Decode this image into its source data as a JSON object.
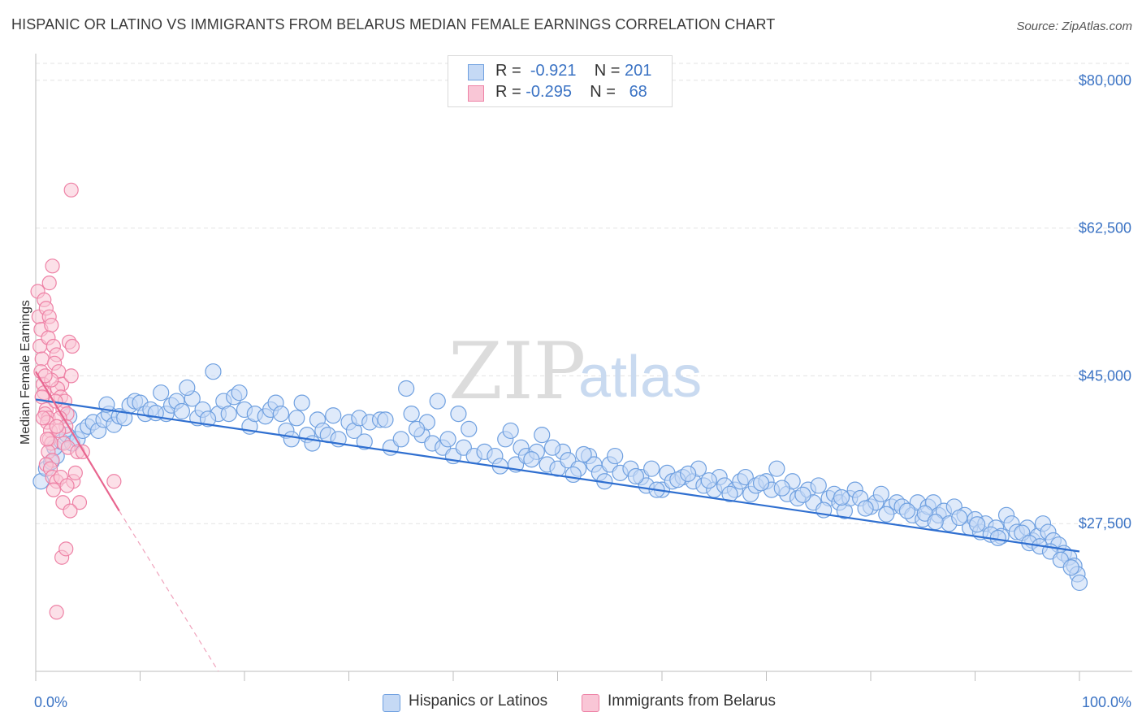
{
  "title": "HISPANIC OR LATINO VS IMMIGRANTS FROM BELARUS MEDIAN FEMALE EARNINGS CORRELATION CHART",
  "source": "Source: ZipAtlas.com",
  "watermark": {
    "zip": "ZIP",
    "atlas": "atlas"
  },
  "legend_top": [
    {
      "r_label": "R =",
      "r_value": "-0.921",
      "n_label": "N =",
      "n_value": "201",
      "color": "#6fa0e0",
      "fill": "#c5d9f5"
    },
    {
      "r_label": "R =",
      "r_value": "-0.295",
      "n_label": "N =",
      "n_value": "68",
      "color": "#ee82a6",
      "fill": "#f9c6d6"
    }
  ],
  "chart_data": {
    "type": "scatter",
    "title": "HISPANIC OR LATINO VS IMMIGRANTS FROM BELARUS MEDIAN FEMALE EARNINGS CORRELATION CHART",
    "xlabel": "",
    "ylabel": "Median Female Earnings",
    "xlim": [
      0,
      100
    ],
    "ylim": [
      10000,
      82000
    ],
    "x_tick_labels": [
      "0.0%",
      "100.0%"
    ],
    "y_ticks": [
      27500,
      45000,
      62500,
      80000
    ],
    "y_tick_labels": [
      "$27,500",
      "$45,000",
      "$62,500",
      "$80,000"
    ],
    "series": [
      {
        "name": "Hispanics or Latinos",
        "color": "#6fa0e0",
        "fill": "#c5d9f5",
        "trend": {
          "x": [
            0,
            100
          ],
          "y": [
            42200,
            24200
          ]
        },
        "points": [
          [
            0.5,
            32500
          ],
          [
            1.0,
            34000
          ],
          [
            1.5,
            34800
          ],
          [
            2.0,
            35500
          ],
          [
            1.8,
            36500
          ],
          [
            2.5,
            37200
          ],
          [
            3.0,
            38000
          ],
          [
            3.5,
            37000
          ],
          [
            4.0,
            37500
          ],
          [
            4.5,
            38500
          ],
          [
            5.0,
            39000
          ],
          [
            5.5,
            39500
          ],
          [
            6.0,
            38500
          ],
          [
            6.5,
            39800
          ],
          [
            7.0,
            40500
          ],
          [
            7.5,
            39200
          ],
          [
            8.0,
            40200
          ],
          [
            8.5,
            40000
          ],
          [
            9.0,
            41500
          ],
          [
            9.5,
            42000
          ],
          [
            10.0,
            41800
          ],
          [
            10.5,
            40500
          ],
          [
            11.0,
            41000
          ],
          [
            12.0,
            43000
          ],
          [
            12.5,
            40500
          ],
          [
            13.0,
            41500
          ],
          [
            13.5,
            42000
          ],
          [
            14.0,
            40800
          ],
          [
            15.0,
            42300
          ],
          [
            15.5,
            40000
          ],
          [
            16.0,
            41000
          ],
          [
            17.0,
            45500
          ],
          [
            17.5,
            40500
          ],
          [
            18.0,
            42000
          ],
          [
            18.5,
            40500
          ],
          [
            19.0,
            42500
          ],
          [
            20.0,
            41000
          ],
          [
            20.5,
            39000
          ],
          [
            21.0,
            40500
          ],
          [
            22.0,
            40200
          ],
          [
            22.5,
            41000
          ],
          [
            23.0,
            41800
          ],
          [
            24.0,
            38500
          ],
          [
            24.5,
            37500
          ],
          [
            25.0,
            40000
          ],
          [
            26.0,
            38000
          ],
          [
            26.5,
            37000
          ],
          [
            27.0,
            39800
          ],
          [
            27.5,
            38500
          ],
          [
            28.0,
            38000
          ],
          [
            29.0,
            37500
          ],
          [
            30.0,
            39500
          ],
          [
            30.5,
            38500
          ],
          [
            31.0,
            40000
          ],
          [
            32.0,
            39500
          ],
          [
            33.0,
            39800
          ],
          [
            34.0,
            36500
          ],
          [
            35.0,
            37500
          ],
          [
            35.5,
            43500
          ],
          [
            36.0,
            40500
          ],
          [
            37.0,
            38000
          ],
          [
            37.5,
            39500
          ],
          [
            38.0,
            37000
          ],
          [
            38.5,
            42000
          ],
          [
            39.0,
            36500
          ],
          [
            39.5,
            37500
          ],
          [
            40.0,
            35500
          ],
          [
            40.5,
            40500
          ],
          [
            41.0,
            36500
          ],
          [
            42.0,
            35500
          ],
          [
            43.0,
            36000
          ],
          [
            44.0,
            35500
          ],
          [
            45.0,
            37500
          ],
          [
            45.5,
            38500
          ],
          [
            46.0,
            34500
          ],
          [
            46.5,
            36500
          ],
          [
            47.0,
            35500
          ],
          [
            48.0,
            36000
          ],
          [
            48.5,
            38000
          ],
          [
            49.0,
            34500
          ],
          [
            50.0,
            34000
          ],
          [
            50.5,
            36000
          ],
          [
            51.0,
            35000
          ],
          [
            52.0,
            34000
          ],
          [
            53.0,
            35500
          ],
          [
            53.5,
            34500
          ],
          [
            54.0,
            33500
          ],
          [
            55.0,
            34500
          ],
          [
            55.5,
            35500
          ],
          [
            56.0,
            33500
          ],
          [
            57.0,
            34000
          ],
          [
            58.0,
            33000
          ],
          [
            58.5,
            32000
          ],
          [
            59.0,
            34000
          ],
          [
            60.0,
            31500
          ],
          [
            60.5,
            33500
          ],
          [
            61.0,
            32500
          ],
          [
            62.0,
            33000
          ],
          [
            63.0,
            32500
          ],
          [
            63.5,
            34000
          ],
          [
            64.0,
            32000
          ],
          [
            65.0,
            31500
          ],
          [
            65.5,
            33000
          ],
          [
            66.0,
            32000
          ],
          [
            67.0,
            31500
          ],
          [
            67.5,
            32500
          ],
          [
            68.0,
            33000
          ],
          [
            68.5,
            31000
          ],
          [
            69.0,
            32000
          ],
          [
            70.0,
            32500
          ],
          [
            70.5,
            31500
          ],
          [
            71.0,
            34000
          ],
          [
            72.0,
            31000
          ],
          [
            72.5,
            32500
          ],
          [
            73.0,
            30500
          ],
          [
            74.0,
            31500
          ],
          [
            74.5,
            30000
          ],
          [
            75.0,
            32000
          ],
          [
            76.0,
            30500
          ],
          [
            76.5,
            31000
          ],
          [
            77.0,
            30000
          ],
          [
            77.5,
            29000
          ],
          [
            78.0,
            30500
          ],
          [
            78.5,
            31500
          ],
          [
            79.0,
            30500
          ],
          [
            80.0,
            29500
          ],
          [
            80.5,
            30000
          ],
          [
            81.0,
            31000
          ],
          [
            82.0,
            29500
          ],
          [
            82.5,
            30000
          ],
          [
            83.0,
            29500
          ],
          [
            84.0,
            28500
          ],
          [
            84.5,
            30000
          ],
          [
            85.0,
            28000
          ],
          [
            85.5,
            29500
          ],
          [
            86.0,
            30000
          ],
          [
            86.5,
            28500
          ],
          [
            87.0,
            29000
          ],
          [
            87.5,
            27500
          ],
          [
            88.0,
            29500
          ],
          [
            89.0,
            28500
          ],
          [
            89.5,
            27000
          ],
          [
            90.0,
            28000
          ],
          [
            90.5,
            26500
          ],
          [
            91.0,
            27500
          ],
          [
            92.0,
            27000
          ],
          [
            92.5,
            26000
          ],
          [
            93.0,
            28500
          ],
          [
            93.5,
            27500
          ],
          [
            94.0,
            26500
          ],
          [
            95.0,
            27000
          ],
          [
            95.5,
            25500
          ],
          [
            96.0,
            26000
          ],
          [
            96.5,
            27500
          ],
          [
            97.0,
            26500
          ],
          [
            97.5,
            25500
          ],
          [
            98.0,
            25000
          ],
          [
            98.5,
            24000
          ],
          [
            99.0,
            23500
          ],
          [
            99.5,
            22500
          ],
          [
            99.8,
            21500
          ],
          [
            100.0,
            20500
          ],
          [
            3.2,
            40200
          ],
          [
            6.8,
            41600
          ],
          [
            11.5,
            40600
          ],
          [
            14.5,
            43600
          ],
          [
            16.5,
            39900
          ],
          [
            19.5,
            43000
          ],
          [
            23.5,
            40500
          ],
          [
            25.5,
            41800
          ],
          [
            28.5,
            40300
          ],
          [
            31.5,
            37200
          ],
          [
            33.5,
            39800
          ],
          [
            36.5,
            38700
          ],
          [
            41.5,
            38700
          ],
          [
            44.5,
            34300
          ],
          [
            47.5,
            35100
          ],
          [
            49.5,
            36500
          ],
          [
            51.5,
            33300
          ],
          [
            52.5,
            35700
          ],
          [
            54.5,
            32500
          ],
          [
            57.5,
            33100
          ],
          [
            59.5,
            31500
          ],
          [
            61.5,
            32700
          ],
          [
            62.5,
            33400
          ],
          [
            64.5,
            32600
          ],
          [
            66.5,
            31000
          ],
          [
            69.5,
            32300
          ],
          [
            71.5,
            31700
          ],
          [
            73.5,
            30900
          ],
          [
            75.5,
            29100
          ],
          [
            77.2,
            30600
          ],
          [
            79.5,
            29300
          ],
          [
            81.5,
            28600
          ],
          [
            83.5,
            29000
          ],
          [
            85.2,
            28700
          ],
          [
            86.2,
            27700
          ],
          [
            88.5,
            28200
          ],
          [
            90.2,
            27400
          ],
          [
            91.5,
            26200
          ],
          [
            92.2,
            25800
          ],
          [
            94.5,
            26400
          ],
          [
            95.2,
            25200
          ],
          [
            96.2,
            24800
          ],
          [
            97.2,
            24200
          ],
          [
            98.2,
            23200
          ],
          [
            99.2,
            22300
          ]
        ]
      },
      {
        "name": "Immigrants from Belarus",
        "color": "#ee82a6",
        "fill": "#f9c6d6",
        "trend": {
          "x": [
            0,
            8
          ],
          "y": [
            45500,
            29000
          ]
        },
        "trend_ext": {
          "x": [
            8,
            17.5
          ],
          "y": [
            29000,
            10000
          ]
        },
        "points": [
          [
            0.2,
            55000
          ],
          [
            0.3,
            52000
          ],
          [
            0.5,
            50500
          ],
          [
            0.4,
            48500
          ],
          [
            0.6,
            47000
          ],
          [
            0.5,
            45500
          ],
          [
            0.7,
            44000
          ],
          [
            0.8,
            43000
          ],
          [
            0.6,
            42500
          ],
          [
            1.0,
            41000
          ],
          [
            0.9,
            40500
          ],
          [
            1.2,
            40000
          ],
          [
            1.1,
            39500
          ],
          [
            1.4,
            38500
          ],
          [
            1.3,
            37500
          ],
          [
            1.5,
            37000
          ],
          [
            1.2,
            36000
          ],
          [
            1.6,
            35000
          ],
          [
            1.0,
            34500
          ],
          [
            0.8,
            54000
          ],
          [
            1.0,
            53000
          ],
          [
            1.3,
            52000
          ],
          [
            1.5,
            51000
          ],
          [
            1.2,
            49500
          ],
          [
            1.7,
            48500
          ],
          [
            2.0,
            47500
          ],
          [
            1.8,
            46500
          ],
          [
            2.2,
            45500
          ],
          [
            2.5,
            44000
          ],
          [
            2.1,
            43500
          ],
          [
            2.4,
            42500
          ],
          [
            2.8,
            42000
          ],
          [
            2.6,
            41000
          ],
          [
            3.0,
            40500
          ],
          [
            2.3,
            40000
          ],
          [
            2.9,
            39000
          ],
          [
            3.2,
            49000
          ],
          [
            3.4,
            45000
          ],
          [
            3.5,
            48500
          ],
          [
            1.9,
            42000
          ],
          [
            1.5,
            44500
          ],
          [
            2.2,
            38500
          ],
          [
            2.7,
            37000
          ],
          [
            3.1,
            36500
          ],
          [
            1.4,
            34000
          ],
          [
            1.6,
            33000
          ],
          [
            2.0,
            32500
          ],
          [
            2.4,
            33000
          ],
          [
            3.6,
            32500
          ],
          [
            1.7,
            31500
          ],
          [
            4.0,
            36000
          ],
          [
            4.5,
            36000
          ],
          [
            3.8,
            33500
          ],
          [
            4.2,
            30000
          ],
          [
            2.6,
            30000
          ],
          [
            3.0,
            32000
          ],
          [
            7.5,
            32500
          ],
          [
            3.3,
            29000
          ],
          [
            2.5,
            23500
          ],
          [
            2.9,
            24500
          ],
          [
            2.0,
            17000
          ],
          [
            3.4,
            67000
          ],
          [
            1.6,
            58000
          ],
          [
            1.3,
            56000
          ],
          [
            0.9,
            45000
          ],
          [
            0.7,
            40000
          ],
          [
            1.1,
            37500
          ],
          [
            2.0,
            39000
          ]
        ]
      }
    ]
  },
  "bottom_legend": [
    {
      "label": "Hispanics or Latinos",
      "color": "#6fa0e0",
      "fill": "#c5d9f5"
    },
    {
      "label": "Immigrants from Belarus",
      "color": "#ee82a6",
      "fill": "#f9c6d6"
    }
  ]
}
